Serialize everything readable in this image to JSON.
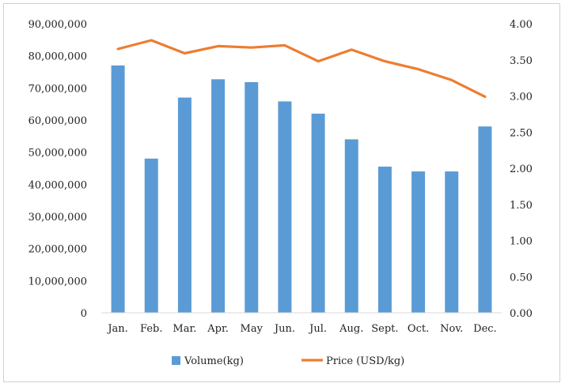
{
  "chart_data": {
    "type": "bar",
    "categories": [
      "Jan.",
      "Feb.",
      "Mar.",
      "Apr.",
      "May",
      "Jun.",
      "Jul.",
      "Aug.",
      "Sept.",
      "Oct.",
      "Nov.",
      "Dec."
    ],
    "series": [
      {
        "name": "Volume(kg)",
        "type": "bar",
        "axis": "left",
        "color": "#5b9bd5",
        "values": [
          77000000,
          48000000,
          67000000,
          72700000,
          71800000,
          65800000,
          62000000,
          54000000,
          45500000,
          44000000,
          44000000,
          58000000
        ]
      },
      {
        "name": "Price (USD/kg)",
        "type": "line",
        "axis": "right",
        "color": "#ed7d31",
        "values": [
          3.65,
          3.77,
          3.59,
          3.69,
          3.67,
          3.7,
          3.48,
          3.64,
          3.48,
          3.37,
          3.22,
          2.99
        ]
      }
    ],
    "y_left": {
      "ylim": [
        0,
        90000000
      ],
      "tick_labels": [
        "0",
        "10,000,000",
        "20,000,000",
        "30,000,000",
        "40,000,000",
        "50,000,000",
        "60,000,000",
        "70,000,000",
        "80,000,000",
        "90,000,000"
      ]
    },
    "y_right": {
      "ylim": [
        0,
        4
      ],
      "tick_labels": [
        "0.00",
        "0.50",
        "1.00",
        "1.50",
        "2.00",
        "2.50",
        "3.00",
        "3.50",
        "4.00"
      ]
    },
    "grid": false,
    "legend_position": "bottom"
  }
}
